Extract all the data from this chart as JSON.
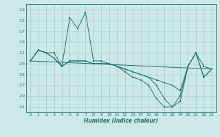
{
  "xlabel": "Humidex (Indice chaleur)",
  "background_color": "#cce8e8",
  "grid_color": "#aacccc",
  "line_color": "#1a7070",
  "xlim": [
    -0.5,
    23.5
  ],
  "ylim": [
    -32,
    -12
  ],
  "yticks": [
    -31,
    -29,
    -27,
    -25,
    -23,
    -21,
    -19,
    -17,
    -15,
    -13
  ],
  "xticks": [
    0,
    1,
    2,
    3,
    4,
    5,
    6,
    7,
    8,
    9,
    10,
    11,
    12,
    13,
    14,
    15,
    16,
    17,
    18,
    19,
    20,
    21,
    22,
    23
  ],
  "series": [
    {
      "x": [
        0,
        1,
        2,
        3,
        4,
        5,
        6,
        7,
        8,
        9,
        10,
        11,
        12,
        13,
        14,
        15,
        16,
        17,
        18,
        19,
        20,
        21,
        22,
        23
      ],
      "y": [
        -22.5,
        -20.5,
        -21.0,
        -21.0,
        -23.5,
        -14.5,
        -16.5,
        -13.5,
        -22.5,
        -22.5,
        -23.0,
        -23.5,
        -24.5,
        -25.5,
        -26.0,
        -27.0,
        -29.5,
        -31.0,
        -31.0,
        -29.0,
        -23.5,
        -21.0,
        -25.5,
        -24.0
      ]
    },
    {
      "x": [
        0,
        1,
        2,
        3,
        4,
        5,
        6,
        7,
        8,
        9,
        10,
        11,
        12,
        13,
        14,
        15,
        16,
        17,
        18,
        19,
        20,
        21,
        22,
        23
      ],
      "y": [
        -22.5,
        -20.5,
        -21.0,
        -22.0,
        -23.5,
        -22.5,
        -22.5,
        -22.5,
        -23.0,
        -23.0,
        -23.0,
        -23.5,
        -24.0,
        -24.5,
        -25.0,
        -25.5,
        -26.0,
        -26.5,
        -27.0,
        -28.0,
        -23.5,
        -21.0,
        -23.5,
        -24.0
      ]
    },
    {
      "x": [
        0,
        1,
        2,
        3,
        4,
        5,
        6,
        7,
        8,
        9,
        10,
        11,
        12,
        13,
        14,
        15,
        16,
        17,
        18,
        19,
        20,
        21,
        22,
        23
      ],
      "y": [
        -22.5,
        -20.5,
        -21.0,
        -22.0,
        -23.5,
        -22.5,
        -22.5,
        -22.5,
        -23.0,
        -23.0,
        -23.0,
        -23.5,
        -24.0,
        -24.5,
        -25.0,
        -25.5,
        -27.0,
        -29.5,
        -31.0,
        -30.0,
        -23.5,
        -21.0,
        -25.5,
        -24.0
      ]
    },
    {
      "x": [
        0,
        23
      ],
      "y": [
        -22.5,
        -24.0
      ]
    }
  ]
}
